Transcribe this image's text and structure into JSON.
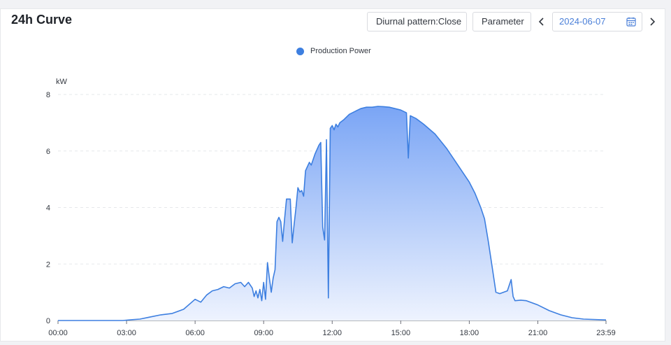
{
  "header": {
    "title": "24h Curve",
    "diurnal_label": "Diurnal pattern:Close",
    "parameter_label": "Parameter",
    "prev_label": "‹",
    "next_label": "›",
    "date_value": "2024-06-07"
  },
  "legend": {
    "series_name": "Production Power"
  },
  "colors": {
    "series": "#3d7fe0",
    "fill_top": "#7aa5f5",
    "fill_bottom": "#eef3fe",
    "grid": "#e6e8eb",
    "legend_dot": "#3d7fe0"
  },
  "chart_data": {
    "type": "area",
    "title": "",
    "ylabel": "kW",
    "xlabel": "",
    "ylim": [
      0,
      8
    ],
    "yticks": [
      "0",
      "2",
      "4",
      "6",
      "8"
    ],
    "xticks": [
      "00:00",
      "03:00",
      "06:00",
      "09:00",
      "12:00",
      "15:00",
      "18:00",
      "21:00",
      "23:59"
    ],
    "grid": true,
    "legend_position": "top-center",
    "series": [
      {
        "name": "Production Power",
        "points": [
          [
            "00:00",
            0
          ],
          [
            "02:50",
            0
          ],
          [
            "03:15",
            0.03
          ],
          [
            "03:35",
            0.05
          ],
          [
            "04:00",
            0.12
          ],
          [
            "04:30",
            0.2
          ],
          [
            "05:00",
            0.25
          ],
          [
            "05:30",
            0.4
          ],
          [
            "06:00",
            0.75
          ],
          [
            "06:15",
            0.65
          ],
          [
            "06:30",
            0.9
          ],
          [
            "06:45",
            1.05
          ],
          [
            "07:00",
            1.1
          ],
          [
            "07:15",
            1.2
          ],
          [
            "07:30",
            1.15
          ],
          [
            "07:45",
            1.3
          ],
          [
            "08:00",
            1.35
          ],
          [
            "08:10",
            1.2
          ],
          [
            "08:20",
            1.35
          ],
          [
            "08:30",
            1.15
          ],
          [
            "08:35",
            0.85
          ],
          [
            "08:40",
            1.05
          ],
          [
            "08:45",
            0.8
          ],
          [
            "08:50",
            1.1
          ],
          [
            "08:55",
            0.7
          ],
          [
            "09:00",
            1.35
          ],
          [
            "09:05",
            0.75
          ],
          [
            "09:10",
            2.05
          ],
          [
            "09:15",
            1.5
          ],
          [
            "09:20",
            1.0
          ],
          [
            "09:25",
            1.5
          ],
          [
            "09:30",
            1.8
          ],
          [
            "09:35",
            3.5
          ],
          [
            "09:40",
            3.65
          ],
          [
            "09:45",
            3.5
          ],
          [
            "09:50",
            2.8
          ],
          [
            "09:55",
            3.6
          ],
          [
            "10:00",
            4.3
          ],
          [
            "10:05",
            4.3
          ],
          [
            "10:10",
            4.3
          ],
          [
            "10:15",
            2.75
          ],
          [
            "10:20",
            3.4
          ],
          [
            "10:25",
            4.0
          ],
          [
            "10:30",
            4.7
          ],
          [
            "10:35",
            4.55
          ],
          [
            "10:40",
            4.6
          ],
          [
            "10:45",
            4.4
          ],
          [
            "10:50",
            5.3
          ],
          [
            "11:00",
            5.6
          ],
          [
            "11:05",
            5.5
          ],
          [
            "11:15",
            5.9
          ],
          [
            "11:25",
            6.2
          ],
          [
            "11:30",
            6.3
          ],
          [
            "11:35",
            3.3
          ],
          [
            "11:40",
            2.85
          ],
          [
            "11:45",
            6.4
          ],
          [
            "11:50",
            0.8
          ],
          [
            "11:55",
            6.8
          ],
          [
            "12:00",
            6.9
          ],
          [
            "12:05",
            6.75
          ],
          [
            "12:10",
            6.95
          ],
          [
            "12:15",
            6.85
          ],
          [
            "12:20",
            7.0
          ],
          [
            "12:30",
            7.1
          ],
          [
            "12:45",
            7.3
          ],
          [
            "13:00",
            7.4
          ],
          [
            "13:15",
            7.5
          ],
          [
            "13:30",
            7.55
          ],
          [
            "13:45",
            7.55
          ],
          [
            "14:00",
            7.58
          ],
          [
            "14:15",
            7.57
          ],
          [
            "14:30",
            7.55
          ],
          [
            "14:45",
            7.5
          ],
          [
            "15:00",
            7.45
          ],
          [
            "15:15",
            7.35
          ],
          [
            "15:20",
            5.75
          ],
          [
            "15:25",
            7.25
          ],
          [
            "15:40",
            7.15
          ],
          [
            "16:00",
            6.95
          ],
          [
            "16:30",
            6.6
          ],
          [
            "17:00",
            6.1
          ],
          [
            "17:30",
            5.5
          ],
          [
            "18:00",
            4.9
          ],
          [
            "18:15",
            4.5
          ],
          [
            "18:30",
            4.0
          ],
          [
            "18:40",
            3.6
          ],
          [
            "18:50",
            2.8
          ],
          [
            "19:00",
            1.9
          ],
          [
            "19:10",
            1.0
          ],
          [
            "19:20",
            0.95
          ],
          [
            "19:30",
            1.0
          ],
          [
            "19:40",
            1.05
          ],
          [
            "19:45",
            1.25
          ],
          [
            "19:50",
            1.45
          ],
          [
            "19:55",
            0.85
          ],
          [
            "20:00",
            0.7
          ],
          [
            "20:15",
            0.72
          ],
          [
            "20:30",
            0.7
          ],
          [
            "21:00",
            0.55
          ],
          [
            "21:30",
            0.35
          ],
          [
            "22:00",
            0.2
          ],
          [
            "22:30",
            0.1
          ],
          [
            "23:00",
            0.05
          ],
          [
            "23:59",
            0.02
          ]
        ]
      }
    ]
  }
}
